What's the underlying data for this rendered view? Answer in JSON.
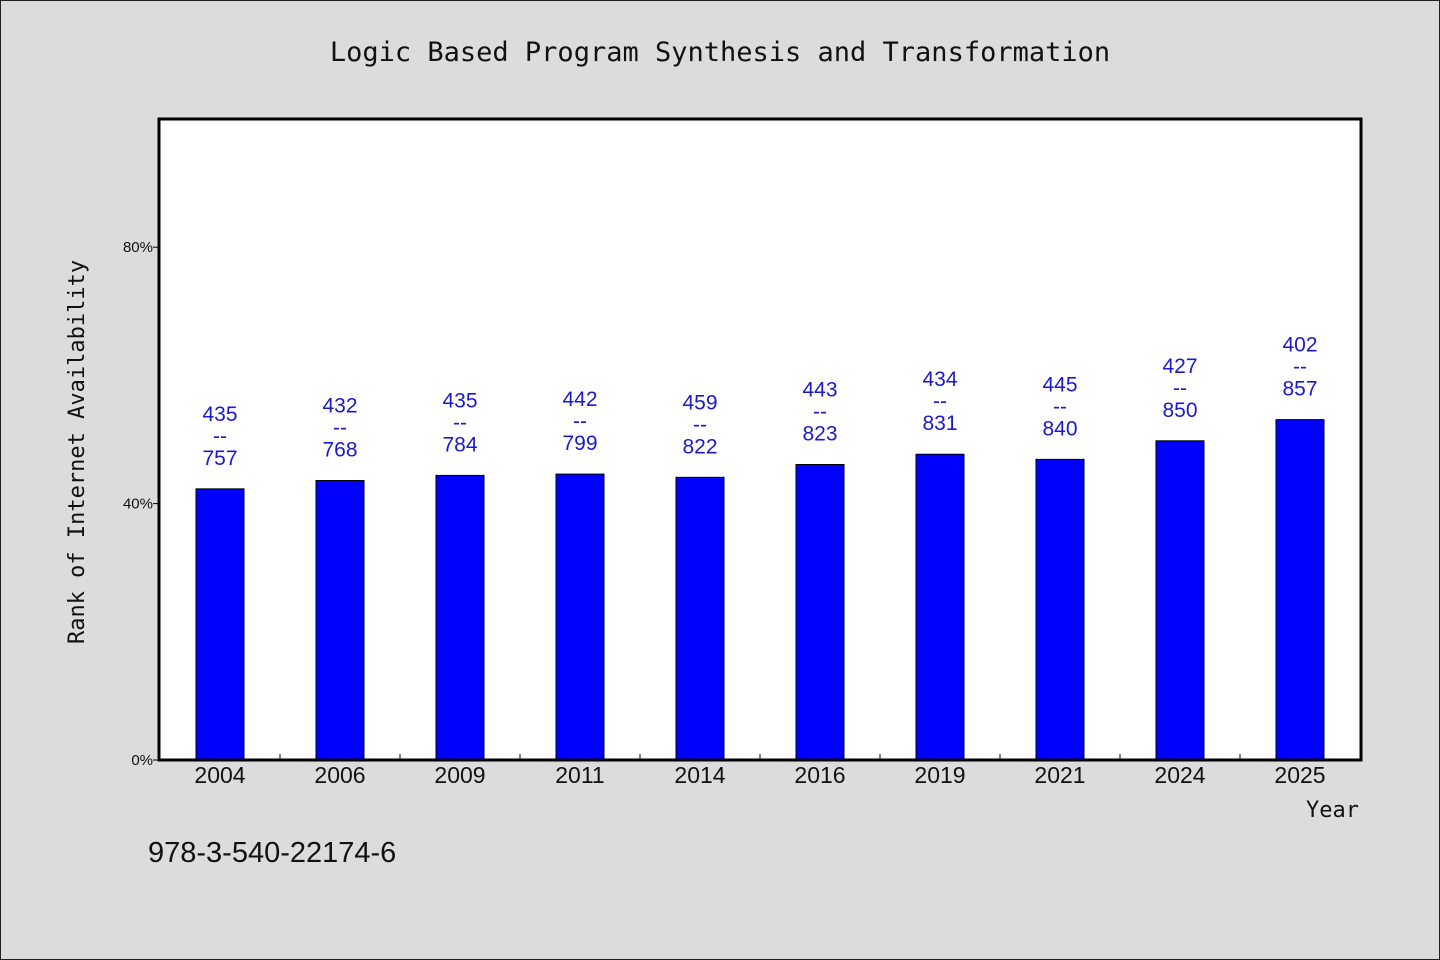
{
  "chart_data": {
    "type": "bar",
    "title": "Logic Based Program Synthesis and Transformation",
    "xlabel": "Year",
    "ylabel": "Rank of Internet Availability",
    "categories": [
      "2004",
      "2006",
      "2009",
      "2011",
      "2014",
      "2016",
      "2019",
      "2021",
      "2024",
      "2025"
    ],
    "values": [
      42.3,
      43.6,
      44.4,
      44.6,
      44.1,
      46.1,
      47.7,
      46.9,
      49.8,
      53.1
    ],
    "data_labels": [
      [
        "435",
        "--",
        "757"
      ],
      [
        "432",
        "--",
        "768"
      ],
      [
        "435",
        "--",
        "784"
      ],
      [
        "442",
        "--",
        "799"
      ],
      [
        "459",
        "--",
        "822"
      ],
      [
        "443",
        "--",
        "823"
      ],
      [
        "434",
        "--",
        "831"
      ],
      [
        "445",
        "--",
        "840"
      ],
      [
        "427",
        "--",
        "850"
      ],
      [
        "402",
        "--",
        "857"
      ]
    ],
    "ylim": [
      0,
      100
    ],
    "yticks": [
      0,
      40,
      80
    ],
    "ytick_labels": [
      "0%",
      "40%",
      "80%"
    ],
    "grid": false,
    "colors": {
      "bar": "#0000ff",
      "data_label": "#1a1acc",
      "background": "#dcdcdc",
      "plot": "#ffffff"
    }
  },
  "footnote": "978-3-540-22174-6"
}
